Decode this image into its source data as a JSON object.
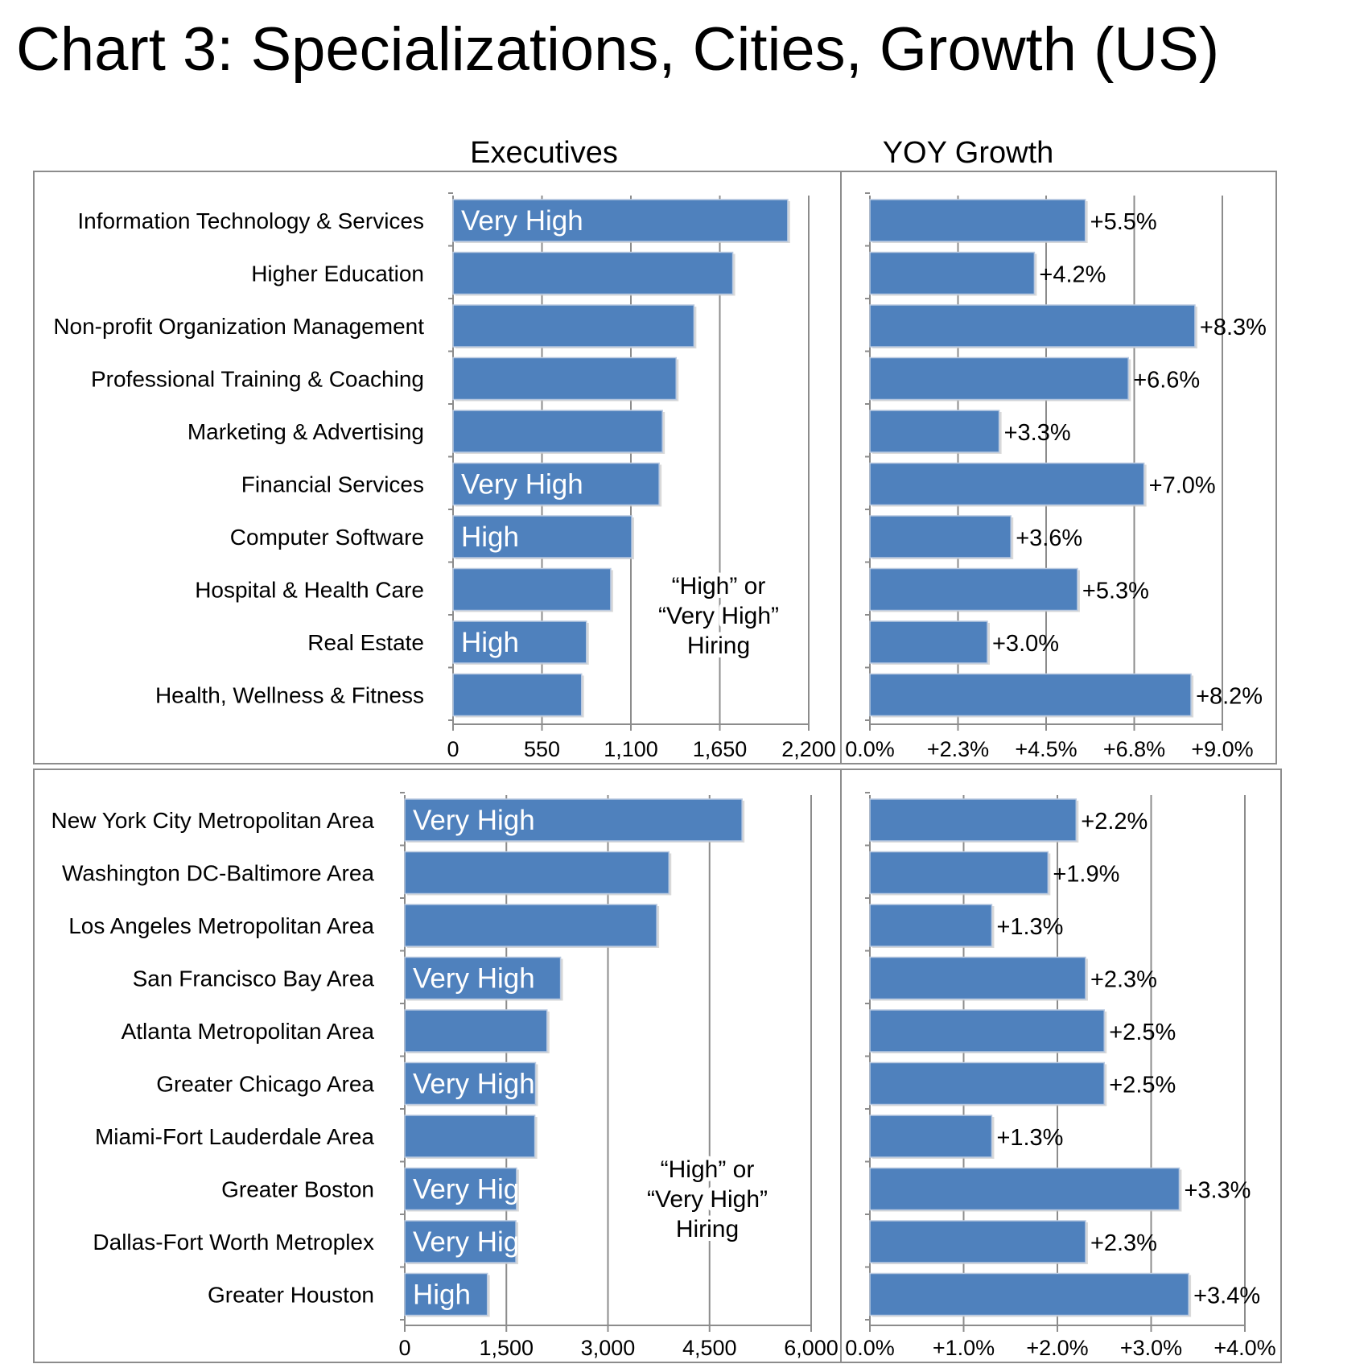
{
  "title": "Chart 3: Specializations, Cities, Growth (US)",
  "headers": {
    "left": "Executives",
    "right": "YOY Growth"
  },
  "colors": {
    "bar": "#4f81bd",
    "bar_edge": "#b9c9e0",
    "grid": "#8c8c8c",
    "frame": "#8c8c8c"
  },
  "chart_data": [
    {
      "type": "bar",
      "orientation": "horizontal",
      "panel": "specializations-executives",
      "title": "Executives",
      "categories": [
        "Information Technology & Services",
        "Higher Education",
        "Non-profit Organization Management",
        "Professional Training & Coaching",
        "Marketing & Advertising",
        "Financial Services",
        "Computer Software",
        "Hospital & Health Care",
        "Real Estate",
        "Health, Wellness & Fitness"
      ],
      "values": [
        2070,
        1730,
        1490,
        1380,
        1295,
        1275,
        1105,
        975,
        825,
        795
      ],
      "bar_labels": [
        "Very High",
        "",
        "",
        "",
        "",
        "Very High",
        "High",
        "",
        "High",
        ""
      ],
      "xlim": [
        0,
        2200
      ],
      "ticks": [
        0,
        550,
        1100,
        1650,
        2200
      ],
      "tick_labels": [
        "0",
        "550",
        "1,100",
        "1,650",
        "2,200"
      ],
      "annotation": [
        "“High” or",
        "“Very High”",
        "Hiring"
      ]
    },
    {
      "type": "bar",
      "orientation": "horizontal",
      "panel": "specializations-growth",
      "title": "YOY Growth",
      "categories": [
        "Information Technology & Services",
        "Higher Education",
        "Non-profit Organization Management",
        "Professional Training & Coaching",
        "Marketing & Advertising",
        "Financial Services",
        "Computer Software",
        "Hospital & Health Care",
        "Real Estate",
        "Health, Wellness & Fitness"
      ],
      "values": [
        5.5,
        4.2,
        8.3,
        6.6,
        3.3,
        7.0,
        3.6,
        5.3,
        3.0,
        8.2
      ],
      "data_labels": [
        "+5.5%",
        "+4.2%",
        "+8.3%",
        "+6.6%",
        "+3.3%",
        "+7.0%",
        "+3.6%",
        "+5.3%",
        "+3.0%",
        "+8.2%"
      ],
      "xlim": [
        0,
        9
      ],
      "ticks": [
        0,
        2.25,
        4.5,
        6.75,
        9
      ],
      "tick_labels": [
        "0.0%",
        "+2.3%",
        "+4.5%",
        "+6.8%",
        "+9.0%"
      ]
    },
    {
      "type": "bar",
      "orientation": "horizontal",
      "panel": "cities-executives",
      "categories": [
        "New York City Metropolitan Area",
        "Washington DC-Baltimore Area",
        "Los Angeles Metropolitan Area",
        "San Francisco Bay Area",
        "Atlanta Metropolitan Area",
        "Greater Chicago Area",
        "Miami-Fort Lauderdale Area",
        "Greater Boston",
        "Dallas-Fort Worth Metroplex",
        "Greater Houston"
      ],
      "values": [
        4980,
        3900,
        3720,
        2300,
        2100,
        1930,
        1920,
        1650,
        1640,
        1220
      ],
      "bar_labels": [
        "Very High",
        "",
        "",
        "Very High",
        "",
        "Very High",
        "",
        "Very High",
        "Very High",
        "High"
      ],
      "xlim": [
        0,
        6000
      ],
      "ticks": [
        0,
        1500,
        3000,
        4500,
        6000
      ],
      "tick_labels": [
        "0",
        "1,500",
        "3,000",
        "4,500",
        "6,000"
      ],
      "annotation": [
        "“High” or",
        "“Very High”",
        "Hiring"
      ]
    },
    {
      "type": "bar",
      "orientation": "horizontal",
      "panel": "cities-growth",
      "categories": [
        "New York City Metropolitan Area",
        "Washington DC-Baltimore Area",
        "Los Angeles Metropolitan Area",
        "San Francisco Bay Area",
        "Atlanta Metropolitan Area",
        "Greater Chicago Area",
        "Miami-Fort Lauderdale Area",
        "Greater Boston",
        "Dallas-Fort Worth Metroplex",
        "Greater Houston"
      ],
      "values": [
        2.2,
        1.9,
        1.3,
        2.3,
        2.5,
        2.5,
        1.3,
        3.3,
        2.3,
        3.4
      ],
      "data_labels": [
        "+2.2%",
        "+1.9%",
        "+1.3%",
        "+2.3%",
        "+2.5%",
        "+2.5%",
        "+1.3%",
        "+3.3%",
        "+2.3%",
        "+3.4%"
      ],
      "xlim": [
        0,
        4
      ],
      "ticks": [
        0,
        1,
        2,
        3,
        4
      ],
      "tick_labels": [
        "0.0%",
        "+1.0%",
        "+2.0%",
        "+3.0%",
        "+4.0%"
      ]
    }
  ]
}
